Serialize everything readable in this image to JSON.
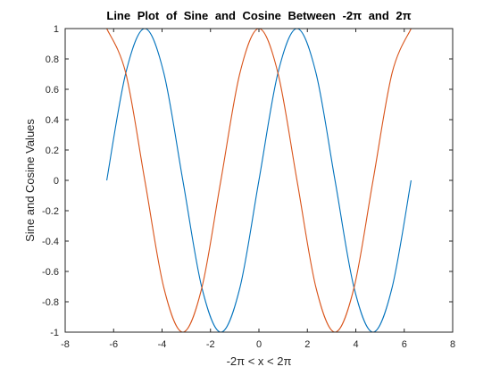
{
  "chart_data": {
    "type": "line",
    "title": "Line Plot of Sine and Cosine Between -2π and 2π",
    "xlabel": "-2π < x < 2π",
    "ylabel": "Sine and Cosine Values",
    "xlim": [
      -8,
      8
    ],
    "ylim": [
      -1,
      1
    ],
    "xticks": [
      -8,
      -6,
      -4,
      -2,
      0,
      2,
      4,
      6,
      8
    ],
    "yticks": [
      -1,
      -0.8,
      -0.6,
      -0.4,
      -0.2,
      0,
      0.2,
      0.4,
      0.6,
      0.8,
      1
    ],
    "xtick_labels": [
      "-8",
      "-6",
      "-4",
      "-2",
      "0",
      "2",
      "4",
      "6",
      "8"
    ],
    "ytick_labels": [
      "-1",
      "-0.8",
      "-0.6",
      "-0.4",
      "-0.2",
      "0",
      "0.2",
      "0.4",
      "0.6",
      "0.8",
      "1"
    ],
    "grid": false,
    "series": [
      {
        "color": "#0072BD",
        "x": [
          -6.283,
          -5.498,
          -4.712,
          -3.927,
          -3.142,
          -2.356,
          -1.571,
          -0.785,
          0,
          0.785,
          1.571,
          2.356,
          3.142,
          3.927,
          4.712,
          5.498,
          6.283
        ],
        "y": [
          0,
          0.707,
          1,
          0.707,
          0,
          -0.707,
          -1,
          -0.707,
          0,
          0.707,
          1,
          0.707,
          0,
          -0.707,
          -1,
          -0.707,
          0
        ]
      },
      {
        "color": "#D95319",
        "x": [
          -6.283,
          -5.498,
          -4.712,
          -3.927,
          -3.142,
          -2.356,
          -1.571,
          -0.785,
          0,
          0.785,
          1.571,
          2.356,
          3.142,
          3.927,
          4.712,
          5.498,
          6.283
        ],
        "y": [
          1,
          0.707,
          0,
          -0.707,
          -1,
          -0.707,
          0,
          0.707,
          1,
          0.707,
          0,
          -0.707,
          -1,
          -0.707,
          0,
          0.707,
          1
        ]
      }
    ]
  }
}
